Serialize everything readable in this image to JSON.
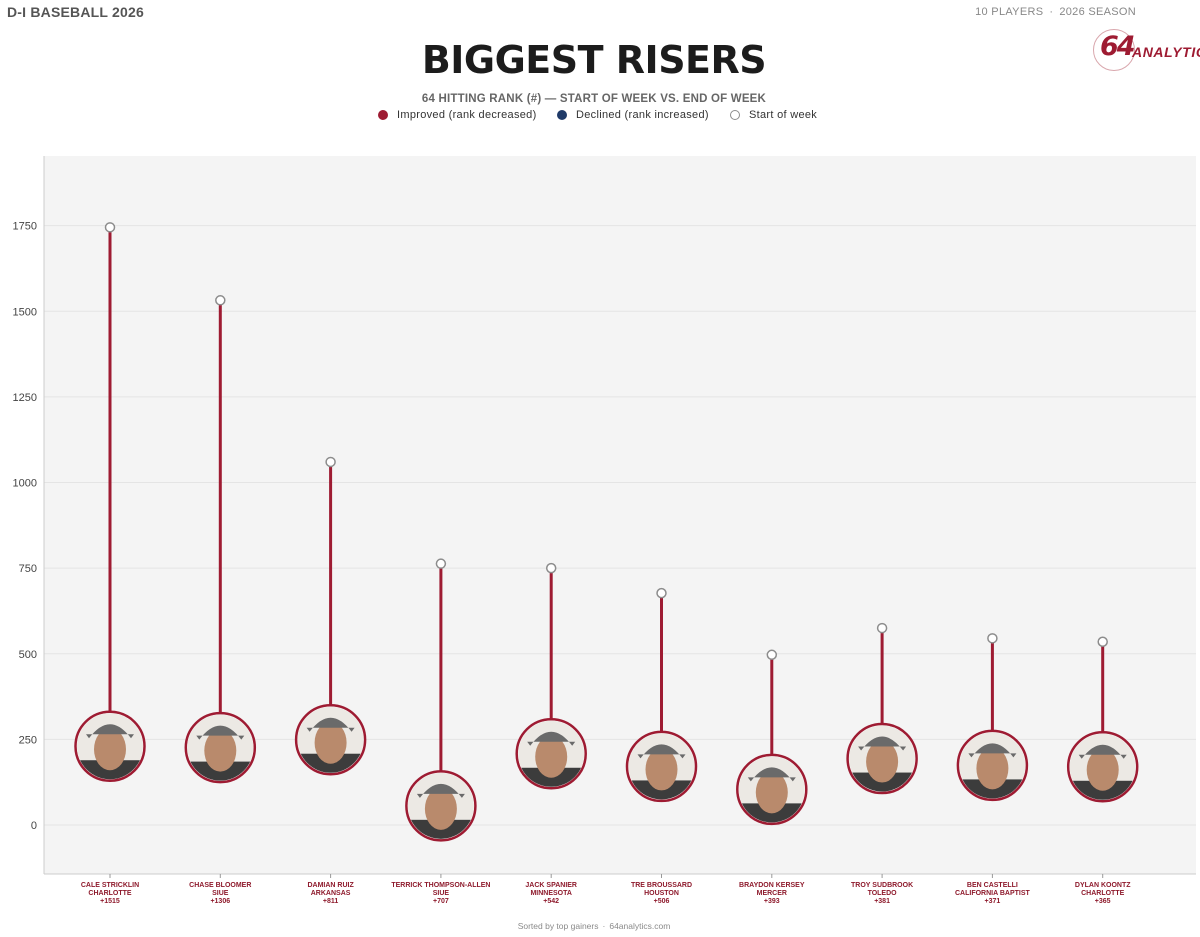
{
  "header": {
    "league": "D-I BASEBALL 2026",
    "players_count": "10 PLAYERS",
    "season": "2026 SEASON",
    "logo_number": "64",
    "logo_word": "ANALYTICS"
  },
  "colors": {
    "improved": "#9e1b32",
    "declined": "#1f3a68",
    "start_marker": "#8c8c8c",
    "plot_background": "#f4f4f4",
    "label_text": "#8e1a2c"
  },
  "legend": [
    {
      "label": "Improved (rank decreased)",
      "style": "filled",
      "color": "#9e1b32"
    },
    {
      "label": "Declined (rank increased)",
      "style": "filled",
      "color": "#1f3a68"
    },
    {
      "label": "Start of week",
      "style": "hollow",
      "color": "#8c8c8c"
    }
  ],
  "footer": {
    "sort_note": "Sorted by top gainers",
    "site": "64analytics.com"
  },
  "chart_data": {
    "type": "dumbbell",
    "title": "BIGGEST RISERS",
    "subtitle": "64 HITTING RANK (#) — START OF WEEK VS. END OF WEEK",
    "ylabel": "",
    "ylim": [
      -150,
      1900
    ],
    "yticks": [
      0,
      250,
      500,
      750,
      1000,
      1250,
      1500,
      1750
    ],
    "grid": true,
    "legend_position": "top-center",
    "categories": [
      {
        "name": "CALE STRICKLIN",
        "team": "CHARLOTTE",
        "change": "+1515"
      },
      {
        "name": "CHASE BLOOMER",
        "team": "SIUE",
        "change": "+1306"
      },
      {
        "name": "DAMIAN RUIZ",
        "team": "ARKANSAS",
        "change": "+811"
      },
      {
        "name": "TERRICK THOMPSON-ALLEN",
        "team": "SIUE",
        "change": "+707"
      },
      {
        "name": "JACK SPANIER",
        "team": "MINNESOTA",
        "change": "+542"
      },
      {
        "name": "TRE BROUSSARD",
        "team": "HOUSTON",
        "change": "+506"
      },
      {
        "name": "BRAYDON KERSEY",
        "team": "MERCER",
        "change": "+393"
      },
      {
        "name": "TROY SUDBROOK",
        "team": "TOLEDO",
        "change": "+381"
      },
      {
        "name": "BEN CASTELLI",
        "team": "CALIFORNIA BAPTIST",
        "change": "+371"
      },
      {
        "name": "DYLAN KOONTZ",
        "team": "CHARLOTTE",
        "change": "+365"
      }
    ],
    "series": [
      {
        "name": "Start of week",
        "values": [
          1745,
          1532,
          1060,
          763,
          750,
          677,
          497,
          575,
          545,
          535
        ]
      },
      {
        "name": "End of week",
        "values": [
          230,
          226,
          249,
          56,
          208,
          171,
          104,
          194,
          174,
          170
        ]
      }
    ]
  }
}
